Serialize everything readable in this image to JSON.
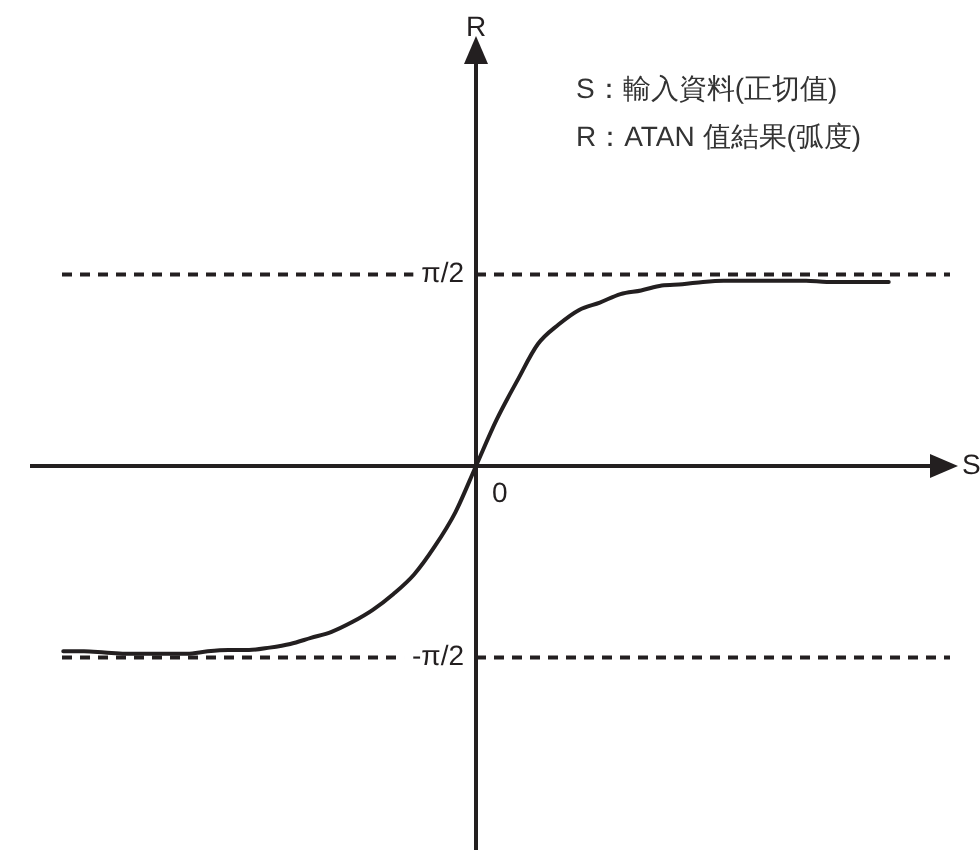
{
  "chart_data": {
    "type": "line",
    "xlabel": "S",
    "ylabel": "R",
    "annotations": [
      "S：輸入資料(正切值)",
      "R：ATAN 值結果(弧度)",
      {
        "text": "0",
        "y": 0
      }
    ],
    "categories": [
      null,
      null,
      null,
      null,
      null,
      null,
      null,
      null,
      null,
      null,
      null,
      null,
      null,
      null,
      null,
      null,
      null,
      null,
      null,
      null,
      null,
      null,
      null,
      null,
      null,
      null,
      null,
      null,
      null,
      null,
      null,
      null,
      null,
      null,
      null,
      null,
      null,
      null,
      null,
      null,
      null,
      null,
      null,
      null,
      null
    ],
    "series": [
      {
        "color": "#231f20",
        "values": [
          null,
          null,
          -1.52,
          -1.52,
          -1.53,
          -1.54,
          -1.54,
          -1.54,
          -1.54,
          -1.52,
          -1.51,
          -1.51,
          -1.49,
          -1.46,
          -1.41,
          -1.36,
          -1.28,
          -1.18,
          -1.05,
          -0.89,
          -0.66,
          -0.38,
          0,
          0.38,
          0.7,
          1.0,
          1.16,
          1.28,
          1.34,
          1.41,
          1.44,
          1.48,
          1.49,
          1.51,
          1.52,
          1.52,
          1.52,
          1.52,
          1.52,
          1.51,
          1.51,
          1.51,
          1.51,
          null,
          null
        ]
      }
    ],
    "ylim": [
      -3.15,
      3.33
    ],
    "yticks": [
      {
        "value": 1.5708,
        "label": "π/2"
      },
      {
        "value": -1.5708,
        "label": "-π/2"
      }
    ],
    "tick_labels": "y",
    "ref_lines": [
      {
        "axis": "y",
        "value": 0,
        "color": "#231f20",
        "line_style": "solid"
      },
      {
        "axis": "y",
        "value": 1.5708,
        "color": "#231f20",
        "line_style": "dashed"
      },
      {
        "axis": "y",
        "value": -1.5708,
        "color": "#231f20",
        "line_style": "dashed"
      }
    ],
    "grid": false,
    "legend": false,
    "marker": "none",
    "line_style": "solid"
  }
}
